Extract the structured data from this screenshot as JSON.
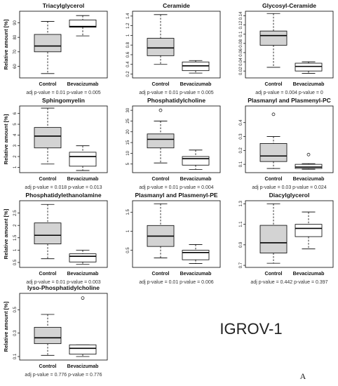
{
  "figure": {
    "cell_line_label": "IGROV-1",
    "panel_letter": "A",
    "ylabel": "Relative amount [%]"
  },
  "chart_data": [
    {
      "type": "box",
      "title": "Triacylglycerol",
      "categories": [
        "Control",
        "Bevacizumab"
      ],
      "ylim": [
        52,
        98
      ],
      "yticks": [
        60,
        70,
        80,
        90
      ],
      "boxes": [
        {
          "min": 55,
          "q1": 70,
          "median": 74,
          "q3": 82,
          "max": 91,
          "outliers": []
        },
        {
          "min": 81,
          "q1": 87,
          "median": 87.5,
          "q3": 92,
          "max": 95,
          "outliers": []
        }
      ],
      "pvalue_text": "adj p-value = 0.01  p-value = 0.005"
    },
    {
      "type": "box",
      "title": "Ceramide",
      "categories": [
        "Control",
        "Bevacizumab"
      ],
      "ylim": [
        0.12,
        1.5
      ],
      "yticks": [
        0.2,
        0.4,
        0.6,
        0.8,
        1.0,
        1.2,
        1.4
      ],
      "boxes": [
        {
          "min": 0.4,
          "q1": 0.58,
          "median": 0.74,
          "q3": 0.94,
          "max": 1.43,
          "outliers": []
        },
        {
          "min": 0.22,
          "q1": 0.27,
          "median": 0.37,
          "q3": 0.45,
          "max": 0.48,
          "outliers": []
        }
      ],
      "pvalue_text": "adj p-value = 0.01  p-value = 0.005"
    },
    {
      "type": "box",
      "title": "Glycosyl-Ceramide",
      "categories": [
        "Control",
        "Bevacizumab"
      ],
      "ylim": [
        0.005,
        0.15
      ],
      "yticks": [
        0.02,
        0.04,
        0.06,
        0.08,
        0.1,
        0.12,
        0.14
      ],
      "boxes": [
        {
          "min": 0.028,
          "q1": 0.076,
          "median": 0.097,
          "q3": 0.107,
          "max": 0.145,
          "outliers": []
        },
        {
          "min": 0.015,
          "q1": 0.02,
          "median": 0.03,
          "q3": 0.037,
          "max": 0.04,
          "outliers": []
        }
      ],
      "pvalue_text": "adj p-value = 0.004  p-value = 0"
    },
    {
      "type": "box",
      "title": "Sphingomyelin",
      "categories": [
        "Control",
        "Bevacizumab"
      ],
      "ylim": [
        0.5,
        6.7
      ],
      "yticks": [
        1,
        2,
        3,
        4,
        5,
        6
      ],
      "boxes": [
        {
          "min": 1.3,
          "q1": 2.8,
          "median": 3.9,
          "q3": 4.7,
          "max": 6.5,
          "outliers": []
        },
        {
          "min": 0.7,
          "q1": 1.1,
          "median": 2.0,
          "q3": 2.4,
          "max": 3.0,
          "outliers": []
        }
      ],
      "pvalue_text": "adj p-value = 0.018  p-value = 0.013"
    },
    {
      "type": "box",
      "title": "Phosphatidylcholine",
      "categories": [
        "Control",
        "Bevacizumab"
      ],
      "ylim": [
        1,
        32
      ],
      "yticks": [
        5,
        10,
        15,
        20,
        25,
        30
      ],
      "boxes": [
        {
          "min": 5.5,
          "q1": 12.5,
          "median": 16.5,
          "q3": 19,
          "max": 25,
          "outliers": [
            30
          ]
        },
        {
          "min": 2.5,
          "q1": 4.5,
          "median": 7.5,
          "q3": 8.5,
          "max": 11.5,
          "outliers": []
        }
      ],
      "pvalue_text": "adj p-value = 0.01  p-value = 0.004"
    },
    {
      "type": "box",
      "title": "Plasmanyl and Plasmenyl-PC",
      "categories": [
        "Control",
        "Bevacizumab"
      ],
      "ylim": [
        0.04,
        0.52
      ],
      "yticks": [
        0.1,
        0.2,
        0.3,
        0.4
      ],
      "boxes": [
        {
          "min": 0.07,
          "q1": 0.12,
          "median": 0.16,
          "q3": 0.25,
          "max": 0.3,
          "outliers": [
            0.46
          ]
        },
        {
          "min": 0.065,
          "q1": 0.07,
          "median": 0.08,
          "q3": 0.1,
          "max": 0.105,
          "outliers": [
            0.17
          ]
        }
      ],
      "pvalue_text": "adj p-value = 0.03  p-value = 0.024"
    },
    {
      "type": "box",
      "title": "Phosphatidylethanolamine",
      "categories": [
        "Control",
        "Bevacizumab"
      ],
      "ylim": [
        0.3,
        3.0
      ],
      "yticks": [
        0.5,
        1.0,
        1.5,
        2.0,
        2.5
      ],
      "boxes": [
        {
          "min": 0.65,
          "q1": 1.25,
          "median": 1.6,
          "q3": 2.1,
          "max": 2.85,
          "outliers": []
        },
        {
          "min": 0.42,
          "q1": 0.52,
          "median": 0.75,
          "q3": 0.85,
          "max": 1.0,
          "outliers": []
        }
      ],
      "pvalue_text": "adj p-value = 0.01  p-value = 0.003"
    },
    {
      "type": "box",
      "title": "Plasmanyl and Plasmenyl-PE",
      "categories": [
        "Control",
        "Bevacizumab"
      ],
      "ylim": [
        0.05,
        1.8
      ],
      "yticks": [
        0.5,
        1.0,
        1.5
      ],
      "boxes": [
        {
          "min": 0.3,
          "q1": 0.6,
          "median": 0.87,
          "q3": 1.15,
          "max": 1.72,
          "outliers": []
        },
        {
          "min": 0.15,
          "q1": 0.25,
          "median": 0.44,
          "q3": 0.5,
          "max": 0.65,
          "outliers": []
        }
      ],
      "pvalue_text": "adj p-value = 0.01  p-value = 0.006"
    },
    {
      "type": "box",
      "title": "Diacylglycerol",
      "categories": [
        "Control",
        "Bevacizumab"
      ],
      "ylim": [
        0.68,
        1.33
      ],
      "yticks": [
        0.7,
        0.9,
        1.1,
        1.3
      ],
      "boxes": [
        {
          "min": 0.72,
          "q1": 0.82,
          "median": 0.92,
          "q3": 1.09,
          "max": 1.3,
          "outliers": []
        },
        {
          "min": 0.86,
          "q1": 0.98,
          "median": 1.06,
          "q3": 1.1,
          "max": 1.22,
          "outliers": []
        }
      ],
      "pvalue_text": "adj p-value = 0.442  p-value = 0.397"
    },
    {
      "type": "box",
      "title": "lyso-Phosphatidylcholine",
      "categories": [
        "Control",
        "Bevacizumab"
      ],
      "ylim": [
        0.07,
        0.64
      ],
      "yticks": [
        0.1,
        0.3,
        0.5
      ],
      "boxes": [
        {
          "min": 0.11,
          "q1": 0.21,
          "median": 0.26,
          "q3": 0.35,
          "max": 0.46,
          "outliers": []
        },
        {
          "min": 0.1,
          "q1": 0.12,
          "median": 0.17,
          "q3": 0.2,
          "max": 0.2,
          "outliers": [
            0.6
          ]
        }
      ],
      "pvalue_text": "adj p-value = 0.776  p-value = 0.776"
    }
  ]
}
